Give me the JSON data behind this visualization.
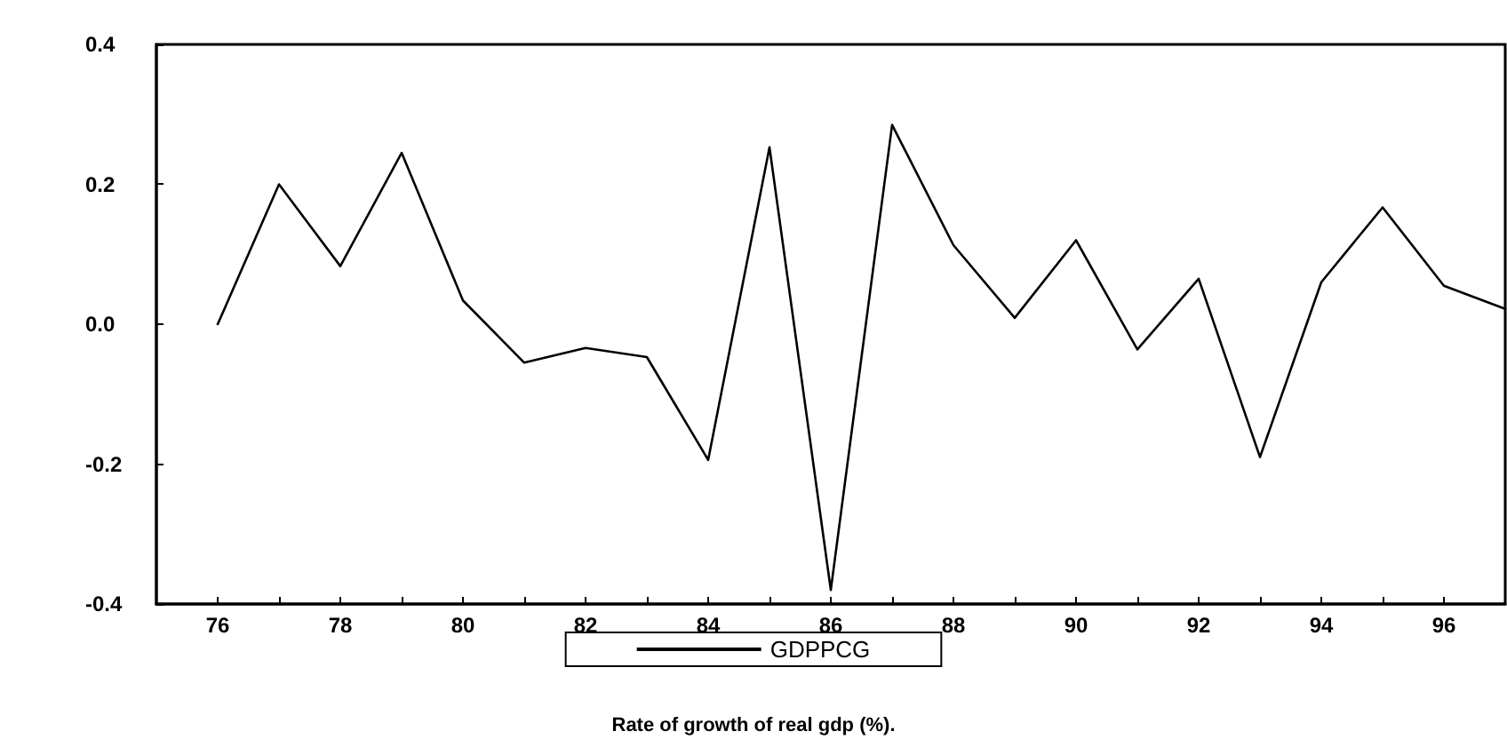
{
  "chart_data": {
    "type": "line",
    "title": "Rate of growth of real gdp (%).",
    "x": [
      76,
      77,
      78,
      79,
      80,
      81,
      82,
      83,
      84,
      85,
      86,
      87,
      88,
      89,
      90,
      91,
      92,
      93,
      94,
      95,
      96,
      97
    ],
    "xlim": [
      75,
      97
    ],
    "xticks": [
      76,
      {
        "value": 77,
        "label": null
      },
      78,
      {
        "value": 79,
        "label": null
      },
      80,
      {
        "value": 81,
        "label": null
      },
      82,
      {
        "value": 83,
        "label": null
      },
      84,
      {
        "value": 85,
        "label": null
      },
      86,
      {
        "value": 87,
        "label": null
      },
      88,
      {
        "value": 89,
        "label": null
      },
      90,
      {
        "value": 91,
        "label": null
      },
      92,
      {
        "value": 93,
        "label": null
      },
      94,
      {
        "value": 95,
        "label": null
      },
      96
    ],
    "ylim": [
      -0.4,
      0.4
    ],
    "yticks": [
      -0.4,
      -0.2,
      {
        "value": 0,
        "label": "0.0"
      },
      0.2,
      0.4
    ],
    "series": [
      {
        "name": "GDPPCG",
        "color": "#000000",
        "values": [
          0.0,
          0.2,
          0.083,
          0.245,
          0.034,
          -0.055,
          -0.034,
          -0.047,
          -0.194,
          0.253,
          -0.38,
          0.285,
          0.113,
          0.009,
          0.12,
          -0.036,
          0.065,
          -0.19,
          0.06,
          0.167,
          0.055,
          0.022
        ]
      }
    ],
    "legend": "bottom",
    "marker": "none",
    "line_style": "solid"
  }
}
